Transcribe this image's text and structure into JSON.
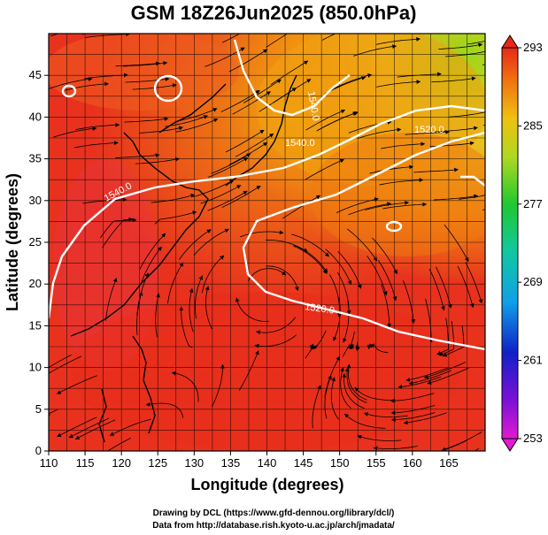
{
  "title": "GSM 18Z26Jun2025 (850.0hPa)",
  "xlabel": "Longitude (degrees)",
  "ylabel": "Latitude (degrees)",
  "x_ticks": [
    "110",
    "115",
    "120",
    "125",
    "130",
    "135",
    "140",
    "145",
    "150",
    "155",
    "160",
    "165"
  ],
  "y_ticks": [
    "0",
    "5",
    "10",
    "15",
    "20",
    "25",
    "30",
    "35",
    "40",
    "45"
  ],
  "colorbar_ticks": [
    "293",
    "285",
    "277",
    "269",
    "261",
    "253"
  ],
  "contour_labels": [
    "1540.0",
    "1540.0",
    "1520.0",
    "1520.0",
    "1540.0"
  ],
  "credits": {
    "line1": "Drawing by DCL (https://www.gfd-dennou.org/library/dcl/)",
    "line2": "Data from http://database.rish.kyoto-u.ac.jp/arch/jmadata/"
  },
  "chart_data": {
    "type": "heatmap",
    "title": "GSM 18Z26Jun2025 (850.0hPa)",
    "xlabel": "Longitude (degrees)",
    "ylabel": "Latitude (degrees)",
    "xlim": [
      110,
      170
    ],
    "ylim": [
      0,
      50
    ],
    "colorbar": {
      "min": 253,
      "max": 293,
      "ticks": [
        293,
        285,
        277,
        269,
        261,
        253
      ]
    },
    "contours": [
      "1520.0",
      "1540.0"
    ],
    "overlay": "streamlines"
  },
  "colors": {
    "hot": "#e8321e",
    "warm": "#f08a10",
    "mild": "#e8d020",
    "cool": "#9ad81a",
    "frame": "#000000",
    "contour": "#ffffff"
  }
}
